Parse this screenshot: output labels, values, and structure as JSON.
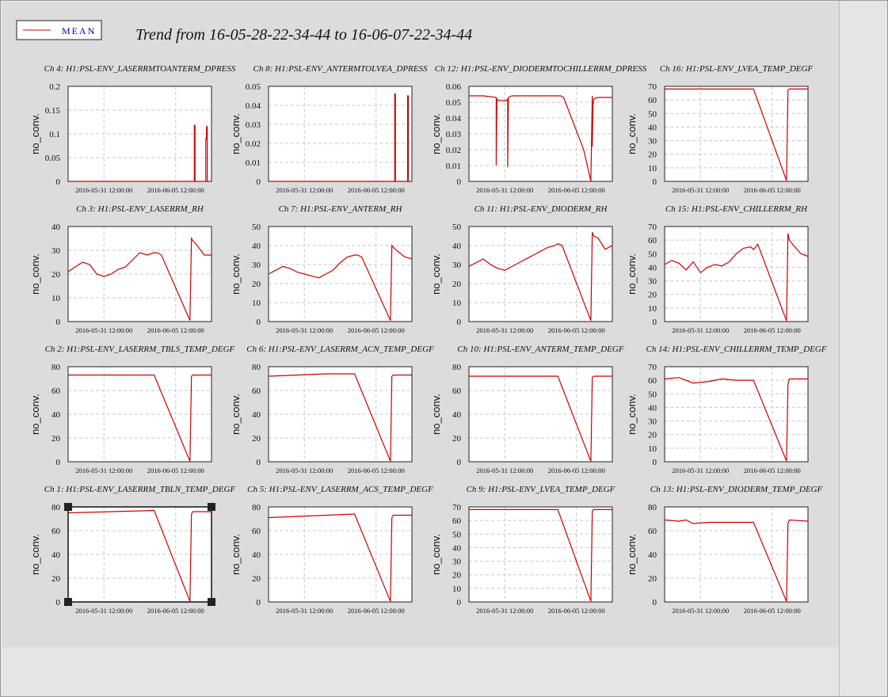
{
  "legend": {
    "label": "MEAN",
    "color": "#cc0000"
  },
  "page_title": "Trend from 16-05-28-22-34-44 to 16-06-07-22-34-44",
  "chart_data": [
    {
      "type": "line",
      "title": "Ch 4: H1:PSL-ENV_LASERRMTOANTERM_DPRESS",
      "ylabel": "no_conv.",
      "ylim": [
        0,
        0.2
      ],
      "yticks": [
        "0",
        "0.05",
        "0.1",
        "0.15",
        "0.2"
      ],
      "xticks": [
        "2016-05-31 12:00:00",
        "2016-06-05 12:00:00"
      ],
      "series": [
        {
          "x": [
            0,
            0.88,
            0.8801,
            0.885,
            0.8851,
            0.96,
            0.9601,
            0.965,
            0.9651,
            0.97,
            0.9701,
            1
          ],
          "y": [
            0,
            0,
            0.118,
            0.118,
            0,
            0,
            0.09,
            0.09,
            0.115,
            0.115,
            0,
            0
          ]
        }
      ]
    },
    {
      "type": "line",
      "title": "Ch 8: H1:PSL-ENV_ANTERMTOLVEA_DPRESS",
      "ylabel": "no_conv.",
      "ylim": [
        0,
        0.05
      ],
      "yticks": [
        "0",
        "0.01",
        "0.02",
        "0.03",
        "0.04",
        "0.05"
      ],
      "xticks": [
        "2016-05-31 12:00:00",
        "2016-06-05 12:00:00"
      ],
      "series": [
        {
          "x": [
            0,
            0.88,
            0.8801,
            0.885,
            0.8851,
            0.97,
            0.9701,
            0.975,
            0.9751,
            1
          ],
          "y": [
            0,
            0,
            0.046,
            0.046,
            0,
            0,
            0.045,
            0.045,
            0,
            0
          ]
        }
      ]
    },
    {
      "type": "line",
      "title": "Ch 12: H1:PSL-ENV_DIODERMTOCHILLERRM_DPRESS",
      "ylabel": "no_conv.",
      "ylim": [
        0,
        0.06
      ],
      "yticks": [
        "0",
        "0.01",
        "0.02",
        "0.03",
        "0.04",
        "0.05",
        "0.06"
      ],
      "xticks": [
        "2016-05-31 12:00:00",
        "2016-06-05 12:00:00"
      ],
      "series": [
        {
          "x": [
            0,
            0.1,
            0.19,
            0.1901,
            0.195,
            0.21,
            0.26,
            0.27,
            0.2701,
            0.275,
            0.3,
            0.6,
            0.62,
            0.64,
            0.66,
            0.8,
            0.85,
            0.86,
            0.8601,
            0.865,
            0.87,
            0.9,
            1
          ],
          "y": [
            0.054,
            0.054,
            0.053,
            0.01,
            0.052,
            0.051,
            0.051,
            0.052,
            0.009,
            0.053,
            0.054,
            0.054,
            0.054,
            0.054,
            0.053,
            0.02,
            0.0002,
            0.054,
            0.022,
            0.048,
            0.052,
            0.053,
            0.053
          ]
        }
      ]
    },
    {
      "type": "line",
      "title": "Ch 16: H1:PSL-ENV_LVEA_TEMP_DEGF",
      "ylabel": "no_conv.",
      "ylim": [
        0,
        70
      ],
      "yticks": [
        "0",
        "10",
        "20",
        "30",
        "40",
        "50",
        "60",
        "70"
      ],
      "xticks": [
        "2016-05-31 12:00:00",
        "2016-06-05 12:00:00"
      ],
      "series": [
        {
          "x": [
            0,
            0.3,
            0.62,
            0.85,
            0.86,
            0.87,
            1
          ],
          "y": [
            68,
            68,
            68,
            0.5,
            67,
            68,
            68
          ]
        }
      ]
    },
    {
      "type": "line",
      "title": "Ch 3: H1:PSL-ENV_LASERRM_RH",
      "ylabel": "no_conv.",
      "ylim": [
        0,
        40
      ],
      "yticks": [
        "0",
        "10",
        "20",
        "30",
        "40"
      ],
      "xticks": [
        "2016-05-31 12:00:00",
        "2016-06-05 12:00:00"
      ],
      "series": [
        {
          "x": [
            0,
            0.05,
            0.1,
            0.15,
            0.2,
            0.25,
            0.3,
            0.35,
            0.4,
            0.45,
            0.5,
            0.55,
            0.6,
            0.62,
            0.65,
            0.85,
            0.86,
            0.87,
            0.9,
            0.95,
            1
          ],
          "y": [
            21,
            23,
            25,
            24,
            20,
            19,
            20,
            22,
            23,
            26,
            29,
            28,
            29,
            29,
            28,
            0.5,
            35,
            34,
            32,
            28,
            28
          ]
        }
      ]
    },
    {
      "type": "line",
      "title": "Ch 7: H1:PSL-ENV_ANTERM_RH",
      "ylabel": "no_conv.",
      "ylim": [
        0,
        50
      ],
      "yticks": [
        "0",
        "10",
        "20",
        "30",
        "40",
        "50"
      ],
      "xticks": [
        "2016-05-31 12:00:00",
        "2016-06-05 12:00:00"
      ],
      "series": [
        {
          "x": [
            0,
            0.05,
            0.1,
            0.15,
            0.2,
            0.25,
            0.3,
            0.35,
            0.4,
            0.45,
            0.5,
            0.55,
            0.6,
            0.62,
            0.65,
            0.85,
            0.86,
            0.87,
            0.9,
            0.95,
            1
          ],
          "y": [
            25,
            27,
            29,
            28,
            26,
            25,
            24,
            23,
            25,
            27,
            31,
            34,
            35,
            35,
            34,
            0.5,
            40,
            39,
            37,
            34,
            33
          ]
        }
      ]
    },
    {
      "type": "line",
      "title": "Ch 11: H1:PSL-ENV_DIODERM_RH",
      "ylabel": "no_conv.",
      "ylim": [
        0,
        50
      ],
      "yticks": [
        "0",
        "10",
        "20",
        "30",
        "40",
        "50"
      ],
      "xticks": [
        "2016-05-31 12:00:00",
        "2016-06-05 12:00:00"
      ],
      "series": [
        {
          "x": [
            0,
            0.05,
            0.1,
            0.15,
            0.2,
            0.25,
            0.3,
            0.35,
            0.4,
            0.45,
            0.5,
            0.55,
            0.6,
            0.62,
            0.65,
            0.85,
            0.86,
            0.87,
            0.9,
            0.95,
            1
          ],
          "y": [
            29,
            31,
            33,
            30,
            28,
            27,
            29,
            31,
            33,
            35,
            37,
            39,
            40,
            41,
            40,
            0.5,
            47,
            45,
            44,
            38,
            40
          ]
        }
      ]
    },
    {
      "type": "line",
      "title": "Ch 15: H1:PSL-ENV_CHILLERRM_RH",
      "ylabel": "no_conv.",
      "ylim": [
        0,
        70
      ],
      "yticks": [
        "0",
        "10",
        "20",
        "30",
        "40",
        "50",
        "60",
        "70"
      ],
      "xticks": [
        "2016-05-31 12:00:00",
        "2016-06-05 12:00:00"
      ],
      "series": [
        {
          "x": [
            0,
            0.05,
            0.1,
            0.15,
            0.2,
            0.25,
            0.3,
            0.35,
            0.4,
            0.45,
            0.5,
            0.55,
            0.6,
            0.62,
            0.65,
            0.85,
            0.86,
            0.87,
            0.9,
            0.95,
            1
          ],
          "y": [
            42,
            45,
            43,
            38,
            44,
            36,
            40,
            42,
            41,
            44,
            50,
            54,
            55,
            53,
            57,
            0.5,
            65,
            60,
            56,
            50,
            48
          ]
        }
      ]
    },
    {
      "type": "line",
      "title": "Ch 2: H1:PSL-ENV_LASERRM_TBLS_TEMP_DEGF",
      "ylabel": "no_conv.",
      "ylim": [
        0,
        80
      ],
      "yticks": [
        "0",
        "20",
        "40",
        "60",
        "80"
      ],
      "xticks": [
        "2016-05-31 12:00:00",
        "2016-06-05 12:00:00"
      ],
      "series": [
        {
          "x": [
            0,
            0.3,
            0.6,
            0.85,
            0.86,
            0.87,
            1
          ],
          "y": [
            73,
            73,
            73,
            0.5,
            72,
            73,
            73
          ]
        }
      ]
    },
    {
      "type": "line",
      "title": "Ch 6: H1:PSL-ENV_LASERRM_ACN_TEMP_DEGF",
      "ylabel": "no_conv.",
      "ylim": [
        0,
        80
      ],
      "yticks": [
        "0",
        "20",
        "40",
        "60",
        "80"
      ],
      "xticks": [
        "2016-05-31 12:00:00",
        "2016-06-05 12:00:00"
      ],
      "series": [
        {
          "x": [
            0,
            0.2,
            0.4,
            0.6,
            0.85,
            0.86,
            0.87,
            1
          ],
          "y": [
            72,
            73,
            74,
            74,
            0.5,
            72,
            73,
            73
          ]
        }
      ]
    },
    {
      "type": "line",
      "title": "Ch 10: H1:PSL-ENV_ANTERM_TEMP_DEGF",
      "ylabel": "no_conv.",
      "ylim": [
        0,
        80
      ],
      "yticks": [
        "0",
        "20",
        "40",
        "60",
        "80"
      ],
      "xticks": [
        "2016-05-31 12:00:00",
        "2016-06-05 12:00:00"
      ],
      "series": [
        {
          "x": [
            0,
            0.3,
            0.62,
            0.85,
            0.86,
            0.87,
            1
          ],
          "y": [
            72,
            72,
            72,
            0.5,
            71,
            72,
            72
          ]
        }
      ]
    },
    {
      "type": "line",
      "title": "Ch 14: H1:PSL-ENV_CHILLERRM_TEMP_DEGF",
      "ylabel": "no_conv.",
      "ylim": [
        0,
        70
      ],
      "yticks": [
        "0",
        "10",
        "20",
        "30",
        "40",
        "50",
        "60",
        "70"
      ],
      "xticks": [
        "2016-05-31 12:00:00",
        "2016-06-05 12:00:00"
      ],
      "series": [
        {
          "x": [
            0,
            0.1,
            0.2,
            0.3,
            0.4,
            0.5,
            0.6,
            0.62,
            0.85,
            0.86,
            0.87,
            1
          ],
          "y": [
            61,
            62,
            58,
            59,
            61,
            60,
            60,
            60,
            0.5,
            57,
            61,
            61
          ]
        }
      ]
    },
    {
      "type": "line",
      "title": "Ch 1: H1:PSL-ENV_LASERRM_TBLN_TEMP_DEGF",
      "ylabel": "no_conv.",
      "ylim": [
        0,
        80
      ],
      "yticks": [
        "0",
        "20",
        "40",
        "60",
        "80"
      ],
      "xticks": [
        "2016-05-31 12:00:00",
        "2016-06-05 12:00:00"
      ],
      "series": [
        {
          "x": [
            0,
            0.3,
            0.6,
            0.85,
            0.86,
            0.87,
            1
          ],
          "y": [
            75,
            76,
            77,
            0.5,
            74,
            76,
            76
          ]
        }
      ]
    },
    {
      "type": "line",
      "title": "Ch 5: H1:PSL-ENV_LASERRM_ACS_TEMP_DEGF",
      "ylabel": "no_conv.",
      "ylim": [
        0,
        80
      ],
      "yticks": [
        "0",
        "20",
        "40",
        "60",
        "80"
      ],
      "xticks": [
        "2016-05-31 12:00:00",
        "2016-06-05 12:00:00"
      ],
      "series": [
        {
          "x": [
            0,
            0.2,
            0.4,
            0.6,
            0.85,
            0.86,
            0.87,
            1
          ],
          "y": [
            71,
            72,
            73,
            74,
            0.5,
            71,
            73,
            73
          ]
        }
      ]
    },
    {
      "type": "line",
      "title": "Ch 9: H1:PSL-ENV_LVEA_TEMP_DEGF",
      "ylabel": "no_conv.",
      "ylim": [
        0,
        70
      ],
      "yticks": [
        "0",
        "10",
        "20",
        "30",
        "40",
        "50",
        "60",
        "70"
      ],
      "xticks": [
        "2016-05-31 12:00:00",
        "2016-06-05 12:00:00"
      ],
      "series": [
        {
          "x": [
            0,
            0.3,
            0.62,
            0.85,
            0.86,
            0.87,
            1
          ],
          "y": [
            68,
            68,
            68,
            0.5,
            67,
            68,
            68
          ]
        }
      ]
    },
    {
      "type": "line",
      "title": "Ch 13: H1:PSL-ENV_DIODERM_TEMP_DEGF",
      "ylabel": "no_conv.",
      "ylim": [
        0,
        80
      ],
      "yticks": [
        "0",
        "20",
        "40",
        "60",
        "80"
      ],
      "xticks": [
        "2016-05-31 12:00:00",
        "2016-06-05 12:00:00"
      ],
      "series": [
        {
          "x": [
            0,
            0.1,
            0.15,
            0.2,
            0.3,
            0.5,
            0.6,
            0.62,
            0.85,
            0.86,
            0.87,
            1
          ],
          "y": [
            69,
            68,
            69,
            66,
            67,
            67,
            67,
            67,
            0.5,
            66,
            69,
            68
          ]
        }
      ]
    }
  ]
}
